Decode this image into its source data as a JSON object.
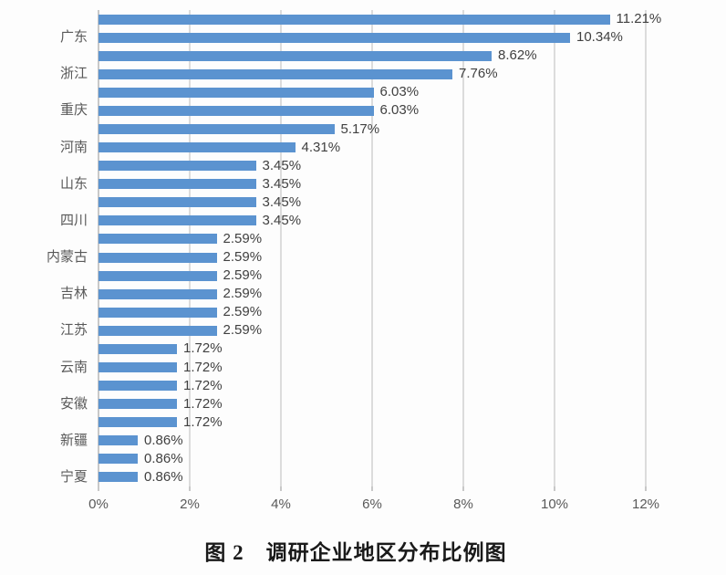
{
  "chart_data": {
    "type": "bar",
    "orientation": "horizontal",
    "title": "图 2　调研企业地区分布比例图",
    "xlabel": "",
    "ylabel": "",
    "xlim": [
      0,
      12
    ],
    "grid": true,
    "legend": false,
    "x_ticks": [
      "0%",
      "2%",
      "4%",
      "6%",
      "8%",
      "10%",
      "12%"
    ],
    "x_tick_values": [
      0,
      2,
      4,
      6,
      8,
      10,
      12
    ],
    "bar_color": "#5b93d0",
    "gridline_color": "#dcdcdc",
    "axis_label_color": "#595959",
    "value_label_color": "#404040",
    "bars": [
      {
        "category": "",
        "value": 11.21,
        "value_label": "11.21%"
      },
      {
        "category": "广东",
        "value": 10.34,
        "value_label": "10.34%"
      },
      {
        "category": "",
        "value": 8.62,
        "value_label": "8.62%"
      },
      {
        "category": "浙江",
        "value": 7.76,
        "value_label": "7.76%"
      },
      {
        "category": "",
        "value": 6.03,
        "value_label": "6.03%"
      },
      {
        "category": "重庆",
        "value": 6.03,
        "value_label": "6.03%"
      },
      {
        "category": "",
        "value": 5.17,
        "value_label": "5.17%"
      },
      {
        "category": "河南",
        "value": 4.31,
        "value_label": "4.31%"
      },
      {
        "category": "",
        "value": 3.45,
        "value_label": "3.45%"
      },
      {
        "category": "山东",
        "value": 3.45,
        "value_label": "3.45%"
      },
      {
        "category": "",
        "value": 3.45,
        "value_label": "3.45%"
      },
      {
        "category": "四川",
        "value": 3.45,
        "value_label": "3.45%"
      },
      {
        "category": "",
        "value": 2.59,
        "value_label": "2.59%"
      },
      {
        "category": "内蒙古",
        "value": 2.59,
        "value_label": "2.59%"
      },
      {
        "category": "",
        "value": 2.59,
        "value_label": "2.59%"
      },
      {
        "category": "吉林",
        "value": 2.59,
        "value_label": "2.59%"
      },
      {
        "category": "",
        "value": 2.59,
        "value_label": "2.59%"
      },
      {
        "category": "江苏",
        "value": 2.59,
        "value_label": "2.59%"
      },
      {
        "category": "",
        "value": 1.72,
        "value_label": "1.72%"
      },
      {
        "category": "云南",
        "value": 1.72,
        "value_label": "1.72%"
      },
      {
        "category": "",
        "value": 1.72,
        "value_label": "1.72%"
      },
      {
        "category": "安徽",
        "value": 1.72,
        "value_label": "1.72%"
      },
      {
        "category": "",
        "value": 1.72,
        "value_label": "1.72%"
      },
      {
        "category": "新疆",
        "value": 0.86,
        "value_label": "0.86%"
      },
      {
        "category": "",
        "value": 0.86,
        "value_label": "0.86%"
      },
      {
        "category": "宁夏",
        "value": 0.86,
        "value_label": "0.86%"
      }
    ]
  }
}
